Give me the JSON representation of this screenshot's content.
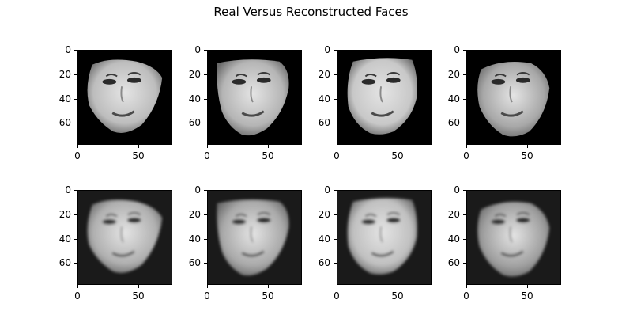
{
  "title": "Real Versus Reconstructed Faces",
  "axes": {
    "yticks": [
      "0",
      "20",
      "40",
      "60"
    ],
    "xticks": [
      "0",
      "50"
    ]
  },
  "rows": [
    {
      "kind": "real",
      "faces": [
        {
          "name": "face-1-real",
          "tone": "#bdbdbd"
        },
        {
          "name": "face-2-real",
          "tone": "#b5b5b5"
        },
        {
          "name": "face-3-real",
          "tone": "#c8c8c8"
        },
        {
          "name": "face-4-real",
          "tone": "#a8a8a8"
        }
      ]
    },
    {
      "kind": "reconstructed",
      "faces": [
        {
          "name": "face-1-reconstructed",
          "tone": "#b0b0b0"
        },
        {
          "name": "face-2-reconstructed",
          "tone": "#a9a9a9"
        },
        {
          "name": "face-3-reconstructed",
          "tone": "#c0c0c0"
        },
        {
          "name": "face-4-reconstructed",
          "tone": "#a0a0a0"
        }
      ]
    }
  ]
}
